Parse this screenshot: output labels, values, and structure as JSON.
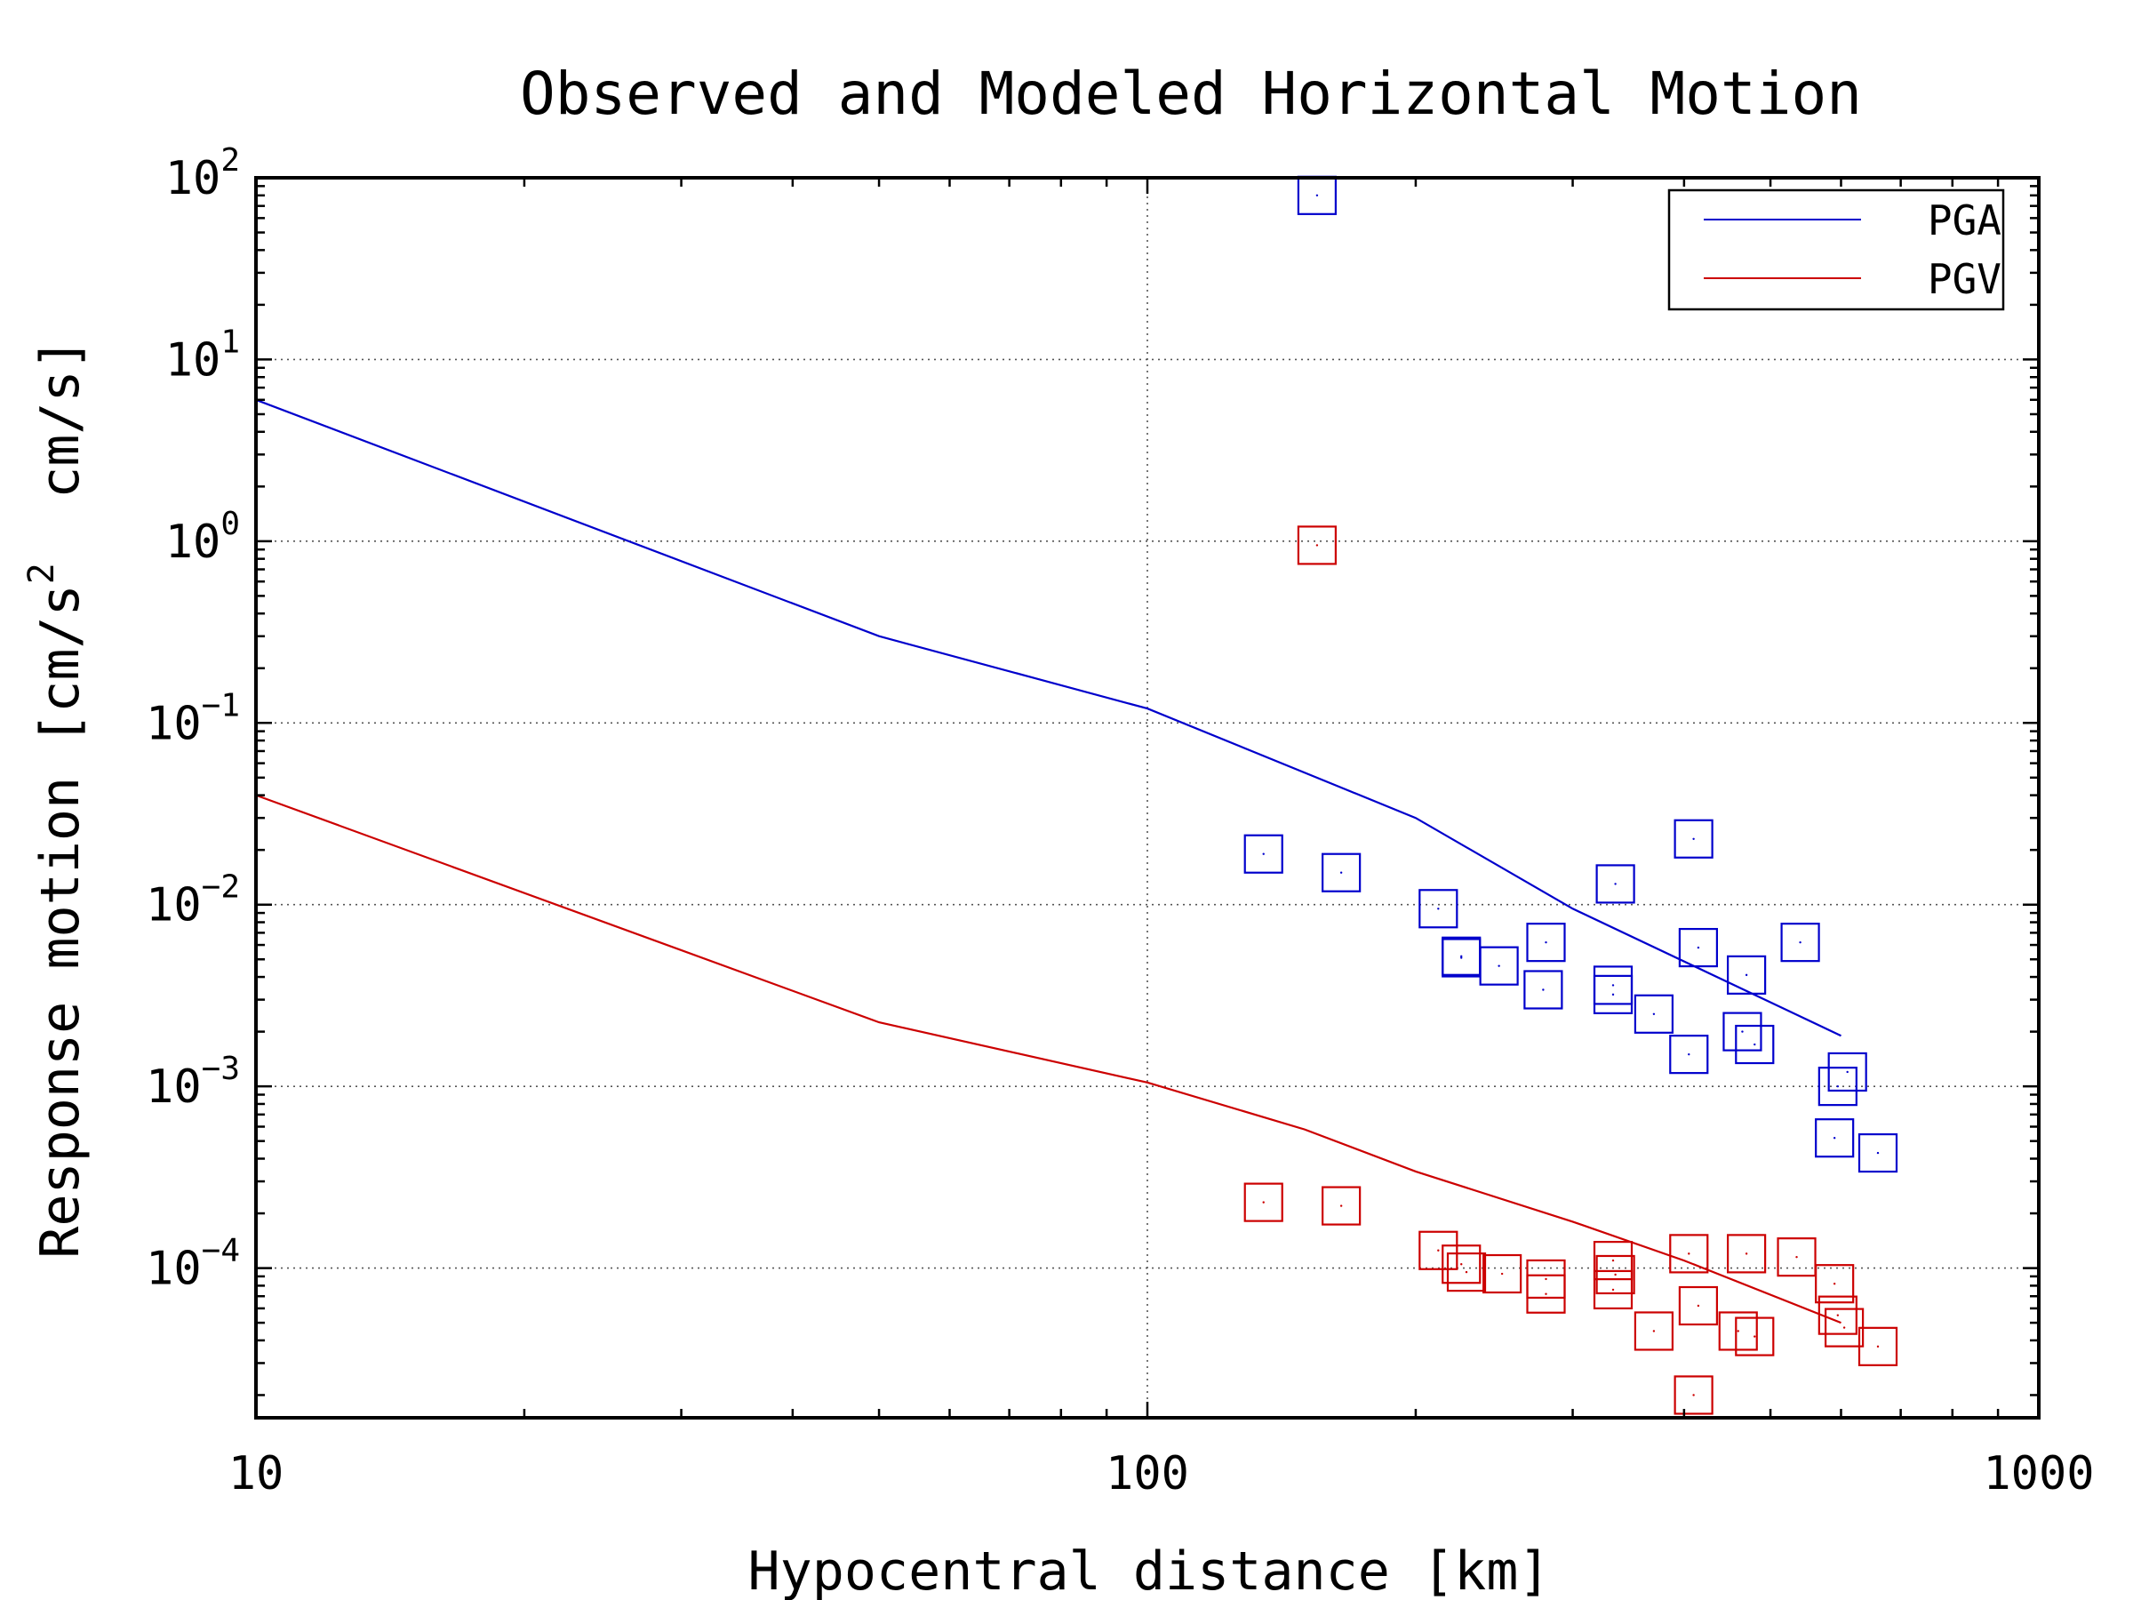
{
  "chart_data": {
    "type": "scatter",
    "title": "Observed and Modeled Horizontal Motion",
    "xlabel": "Hypocentral distance [km]",
    "ylabel": "Response motion [cm/s²  cm/s]",
    "ylabel_parts": {
      "before": "Response motion [cm/s",
      "sup": "2",
      "after": "  cm/s]"
    },
    "x_scale": "log",
    "y_scale": "log",
    "xlim": [
      10,
      1000
    ],
    "ylim": [
      1.5e-05,
      100
    ],
    "grid": true,
    "legend_position": "top-right",
    "x_ticks": [
      {
        "value": 10,
        "label": "10"
      },
      {
        "value": 100,
        "label": "100"
      },
      {
        "value": 1000,
        "label": "1000"
      }
    ],
    "y_ticks": [
      {
        "value": 100,
        "base": "10",
        "exp": "2"
      },
      {
        "value": 10,
        "base": "10",
        "exp": "1"
      },
      {
        "value": 1,
        "base": "10",
        "exp": "0"
      },
      {
        "value": 0.1,
        "base": "10",
        "exp": "−1"
      },
      {
        "value": 0.01,
        "base": "10",
        "exp": "−2"
      },
      {
        "value": 0.001,
        "base": "10",
        "exp": "−3"
      },
      {
        "value": 0.0001,
        "base": "10",
        "exp": "−4"
      }
    ],
    "series": [
      {
        "name": "PGA",
        "color": "#0000cc",
        "line": {
          "x": [
            10,
            50,
            100,
            200,
            300,
            600
          ],
          "y": [
            6.0,
            0.3,
            0.12,
            0.03,
            0.0095,
            0.0019
          ]
        },
        "points": {
          "x": [
            155,
            135,
            165,
            212,
            225,
            225,
            248,
            280,
            278,
            335,
            333,
            333,
            370,
            410,
            405,
            415,
            470,
            465,
            480,
            540,
            610,
            595,
            590,
            660
          ],
          "y": [
            80,
            0.019,
            0.015,
            0.0095,
            0.0052,
            0.0051,
            0.0046,
            0.0062,
            0.0034,
            0.013,
            0.0036,
            0.0032,
            0.0025,
            0.023,
            0.0015,
            0.0058,
            0.0041,
            0.002,
            0.0017,
            0.0062,
            0.0012,
            0.001,
            0.00052,
            0.00043
          ]
        }
      },
      {
        "name": "PGV",
        "color": "#cc0000",
        "line": {
          "x": [
            10,
            50,
            100,
            150,
            200,
            300,
            400,
            600
          ],
          "y": [
            0.04,
            0.00225,
            0.00105,
            0.00058,
            0.00034,
            0.00018,
            0.00011,
            5e-05
          ]
        },
        "points": {
          "x": [
            155,
            135,
            165,
            212,
            225,
            228,
            250,
            280,
            280,
            333,
            335,
            333,
            370,
            405,
            410,
            415,
            460,
            470,
            480,
            535,
            590,
            595,
            605,
            660
          ],
          "y": [
            0.95,
            0.00023,
            0.00022,
            0.000125,
            0.000105,
            9.5e-05,
            9.3e-05,
            8.7e-05,
            7.2e-05,
            0.00011,
            9.2e-05,
            7.6e-05,
            4.5e-05,
            0.00012,
            2e-05,
            6.2e-05,
            4.5e-05,
            0.00012,
            4.2e-05,
            0.000115,
            8.2e-05,
            5.5e-05,
            4.7e-05,
            3.7e-05
          ]
        }
      }
    ]
  }
}
